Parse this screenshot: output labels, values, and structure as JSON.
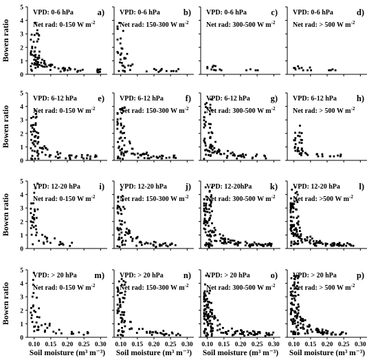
{
  "chart_data": {
    "type": "scatter",
    "xlabel": "Soil moisture (m³ m⁻³)",
    "ylabel": "Bowen ratio",
    "xlim": [
      0.08,
      0.32
    ],
    "ylim": [
      0,
      5
    ],
    "xticks": [
      "0.10",
      "0.15",
      "0.20",
      "0.25",
      "0.30"
    ],
    "yticks": [
      "0",
      "1",
      "2",
      "3",
      "4",
      "5"
    ],
    "rows": [
      {
        "vpd": "VPD: 0-6 hPa"
      },
      {
        "vpd": "VPD: 6-12 hPa"
      },
      {
        "vpd": "VPD: 12-20 hPa"
      },
      {
        "vpd": "VPD: > 20 hPa"
      }
    ],
    "columns": [
      {
        "net_rad": "Net rad: 0-150 W m",
        "exp": "-2"
      },
      {
        "net_rad": "Net rad: 150-300 W m",
        "exp": "-2"
      },
      {
        "net_rad": "Net rad: 300-500 W m",
        "exp": "-2"
      },
      {
        "net_rad": "Net rad: > 500 W m",
        "exp": "-2"
      }
    ],
    "panels": [
      {
        "label": "a)",
        "vpd": "VPD: 0-6 hPa",
        "net_rad": "Net rad: 0-150 W m",
        "exp": "-2",
        "density": 2,
        "x": [
          0.09,
          0.3
        ],
        "y": [
          0.1,
          4.0
        ]
      },
      {
        "label": "b)",
        "vpd": "VPD: 0-6 hPa",
        "net_rad": "Net rad: 150-300 W m",
        "exp": "-2",
        "density": 1,
        "x": [
          0.09,
          0.28
        ],
        "y": [
          0.1,
          4.3
        ]
      },
      {
        "label": "c)",
        "vpd": "VPD: 0-6 hPa",
        "net_rad": "Net rad: 300-500 W m",
        "exp": "-2",
        "density": 0,
        "x": [
          0.1,
          0.28
        ],
        "y": [
          0.3,
          1.0
        ]
      },
      {
        "label": "d)",
        "vpd": "VPD: 0-6 hPa",
        "net_rad": "Net rad: > 500 W m",
        "exp": "-2",
        "density": 0,
        "x": [
          0.1,
          0.28
        ],
        "y": [
          0.3,
          0.6
        ]
      },
      {
        "label": "e)",
        "vpd": "VPD: 6-12 hPa",
        "net_rad": "Net rad: 0-150 W m",
        "exp": "-2",
        "density": 2,
        "x": [
          0.09,
          0.3
        ],
        "y": [
          0.05,
          3.8
        ]
      },
      {
        "label": "f)",
        "vpd": "VPD: 6-12 hPa",
        "net_rad": "Net rad: 150-300 W m",
        "exp": "-2",
        "density": 2,
        "x": [
          0.09,
          0.28
        ],
        "y": [
          0.1,
          4.4
        ]
      },
      {
        "label": "g)",
        "vpd": "VPD: 6-12 hPa",
        "net_rad": "Net rad: 300-500 W m",
        "exp": "-2",
        "density": 2,
        "x": [
          0.09,
          0.28
        ],
        "y": [
          0.1,
          4.6
        ]
      },
      {
        "label": "h)",
        "vpd": "VPD: 6-12 hPa",
        "net_rad": "Net rad: > 500 W m",
        "exp": "-2",
        "density": 1,
        "x": [
          0.1,
          0.25
        ],
        "y": [
          0.3,
          2.8
        ]
      },
      {
        "label": "i)",
        "vpd": "VPD: 12-20 hPa",
        "net_rad": "Net rad: 0-150 W m",
        "exp": "-2",
        "density": 1,
        "x": [
          0.09,
          0.22
        ],
        "y": [
          0.05,
          4.9
        ]
      },
      {
        "label": "j)",
        "vpd": "VPD: 12-20 hPa",
        "net_rad": "Net rad: 150-300 W m",
        "exp": "-2",
        "density": 2,
        "x": [
          0.09,
          0.27
        ],
        "y": [
          0.1,
          4.7
        ]
      },
      {
        "label": "k)",
        "vpd": "VPD: 12-20hPa",
        "net_rad": "Net rad: 300-500 W m",
        "exp": "-2",
        "density": 3,
        "x": [
          0.09,
          0.3
        ],
        "y": [
          0.1,
          4.6
        ]
      },
      {
        "label": "l)",
        "vpd": "VPD: 12-20 hPa",
        "net_rad": "Net rad: >500 W m",
        "exp": "-2",
        "density": 3,
        "x": [
          0.09,
          0.28
        ],
        "y": [
          0.2,
          4.7
        ]
      },
      {
        "label": "m)",
        "vpd": "VPD: > 20 hPa",
        "net_rad": "Net rad: 0-150 W m",
        "exp": "-2",
        "density": 1,
        "x": [
          0.09,
          0.27
        ],
        "y": [
          0.05,
          4.8
        ]
      },
      {
        "label": "n)",
        "vpd": "VPD: > 20 hPa",
        "net_rad": "Net rad: 150-300 W m",
        "exp": "-2",
        "density": 2,
        "x": [
          0.09,
          0.28
        ],
        "y": [
          0.1,
          4.5
        ]
      },
      {
        "label": "o)",
        "vpd": "VPD: > 20 hPa",
        "net_rad": "Net rad: 300-500 W m",
        "exp": "-2",
        "density": 3,
        "x": [
          0.09,
          0.3
        ],
        "y": [
          0.1,
          4.6
        ]
      },
      {
        "label": "p)",
        "vpd": "VPD: > 20 hPa",
        "net_rad": "Net rad: > 500 W m",
        "exp": "-2",
        "density": 3,
        "x": [
          0.09,
          0.26
        ],
        "y": [
          0.2,
          4.8
        ]
      }
    ]
  }
}
